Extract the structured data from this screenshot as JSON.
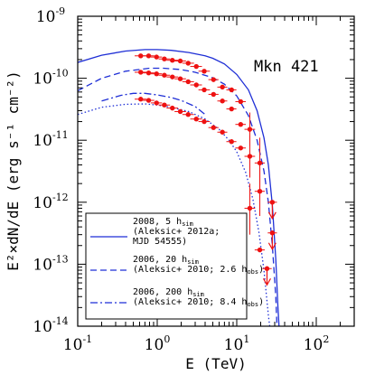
{
  "chart_data": {
    "type": "scatter",
    "annotation": "Mkn 421",
    "xlabel": "E (TeV)",
    "ylabel": "E²×dN/dE (erg s⁻¹ cm⁻²)",
    "xscale": "log",
    "yscale": "log",
    "xlim": [
      0.1,
      300
    ],
    "ylim": [
      1e-14,
      1e-09
    ],
    "x_ticks": [
      {
        "value": 0.1,
        "base": "10",
        "exp": "-1"
      },
      {
        "value": 1,
        "base": "10",
        "exp": "0"
      },
      {
        "value": 10,
        "base": "10",
        "exp": "1"
      },
      {
        "value": 100,
        "base": "10",
        "exp": "2"
      }
    ],
    "y_ticks": [
      {
        "value": 1e-09,
        "base": "10",
        "exp": "-9"
      },
      {
        "value": 1e-10,
        "base": "10",
        "exp": "-10"
      },
      {
        "value": 1e-11,
        "base": "10",
        "exp": "-11"
      },
      {
        "value": 1e-12,
        "base": "10",
        "exp": "-12"
      },
      {
        "value": 1e-13,
        "base": "10",
        "exp": "-13"
      },
      {
        "value": 1e-14,
        "base": "10",
        "exp": "-14"
      }
    ],
    "series": [
      {
        "style": "solid",
        "color": "#1f2fd6",
        "curve": [
          [
            0.1,
            1.8e-10
          ],
          [
            0.2,
            2.35e-10
          ],
          [
            0.4,
            2.75e-10
          ],
          [
            0.7,
            2.9e-10
          ],
          [
            1.0,
            2.9e-10
          ],
          [
            1.5,
            2.82e-10
          ],
          [
            2.5,
            2.6e-10
          ],
          [
            4.0,
            2.3e-10
          ],
          [
            5.0,
            2.1e-10
          ],
          [
            7.0,
            1.7e-10
          ],
          [
            10,
            1.15e-10
          ],
          [
            14,
            6.5e-11
          ],
          [
            18,
            3e-11
          ],
          [
            22,
            1.1e-11
          ],
          [
            25,
            4e-12
          ],
          [
            28,
            9e-13
          ],
          [
            31,
            1.2e-13
          ],
          [
            33,
            2e-14
          ],
          [
            34,
            1e-14
          ]
        ],
        "data": [
          {
            "x": 0.62,
            "y": 2.3e-10,
            "xerr": [
              0.52,
              0.73
            ]
          },
          {
            "x": 0.78,
            "y": 2.3e-10,
            "xerr": [
              0.66,
              0.92
            ]
          },
          {
            "x": 0.98,
            "y": 2.2e-10,
            "xerr": [
              0.83,
              1.15
            ]
          },
          {
            "x": 1.23,
            "y": 2.05e-10,
            "xerr": [
              1.04,
              1.45
            ]
          },
          {
            "x": 1.55,
            "y": 1.95e-10,
            "xerr": [
              1.31,
              1.83
            ]
          },
          {
            "x": 1.95,
            "y": 1.9e-10,
            "xerr": [
              1.65,
              2.3
            ]
          },
          {
            "x": 2.45,
            "y": 1.75e-10,
            "xerr": [
              2.07,
              2.9
            ]
          },
          {
            "x": 3.1,
            "y": 1.55e-10,
            "xerr": [
              2.6,
              3.65
            ]
          },
          {
            "x": 3.9,
            "y": 1.3e-10,
            "xerr": [
              3.3,
              4.6
            ]
          },
          {
            "x": 5.1,
            "y": 9.5e-11,
            "xerr": [
              4.4,
              5.9
            ]
          },
          {
            "x": 6.6,
            "y": 7.2e-11,
            "xerr": [
              5.7,
              7.6
            ]
          },
          {
            "x": 8.6,
            "y": 6.5e-11,
            "xerr": [
              7.4,
              9.9
            ]
          },
          {
            "x": 11.2,
            "y": 4.2e-11,
            "xerr": [
              9.6,
              13.0
            ]
          },
          {
            "x": 14.6,
            "y": 1.5e-11,
            "xerr": [
              12.5,
              17.0
            ],
            "yerr": [
              8e-12,
              2.8e-11
            ]
          },
          {
            "x": 19.5,
            "y": 4.3e-12,
            "xerr": [
              16.8,
              22.5
            ],
            "yerr": [
              1.6e-12,
              1.1e-11
            ]
          },
          {
            "x": 28,
            "y": 1e-12,
            "xerr": [
              24.5,
              32
            ],
            "upper_limit": true
          }
        ]
      },
      {
        "style": "dashed",
        "color": "#1f2fd6",
        "curve": [
          [
            0.1,
            6.3e-11
          ],
          [
            0.2,
            1e-10
          ],
          [
            0.4,
            1.3e-10
          ],
          [
            0.8,
            1.45e-10
          ],
          [
            1.2,
            1.45e-10
          ],
          [
            2.0,
            1.38e-10
          ],
          [
            3.0,
            1.25e-10
          ],
          [
            5.0,
            1.02e-10
          ],
          [
            7.0,
            8e-11
          ],
          [
            10,
            5.2e-11
          ],
          [
            14,
            2.5e-11
          ],
          [
            18,
            1e-11
          ],
          [
            22,
            3.2e-12
          ],
          [
            25,
            1e-12
          ],
          [
            28,
            2e-13
          ],
          [
            31,
            3e-14
          ],
          [
            32,
            1e-14
          ]
        ],
        "data": [
          {
            "x": 0.62,
            "y": 1.25e-10,
            "xerr": [
              0.52,
              0.73
            ]
          },
          {
            "x": 0.78,
            "y": 1.22e-10,
            "xerr": [
              0.66,
              0.92
            ]
          },
          {
            "x": 0.98,
            "y": 1.18e-10,
            "xerr": [
              0.83,
              1.15
            ]
          },
          {
            "x": 1.23,
            "y": 1.12e-10,
            "xerr": [
              1.04,
              1.45
            ]
          },
          {
            "x": 1.55,
            "y": 1.05e-10,
            "xerr": [
              1.31,
              1.83
            ]
          },
          {
            "x": 1.95,
            "y": 9.8e-11,
            "xerr": [
              1.65,
              2.3
            ]
          },
          {
            "x": 2.45,
            "y": 8.8e-11,
            "xerr": [
              2.07,
              2.9
            ]
          },
          {
            "x": 3.1,
            "y": 7.8e-11,
            "xerr": [
              2.6,
              3.65
            ]
          },
          {
            "x": 3.9,
            "y": 6.5e-11,
            "xerr": [
              3.3,
              4.6
            ]
          },
          {
            "x": 5.1,
            "y": 5.5e-11,
            "xerr": [
              4.4,
              5.9
            ]
          },
          {
            "x": 6.6,
            "y": 4.3e-11,
            "xerr": [
              5.7,
              7.6
            ]
          },
          {
            "x": 8.6,
            "y": 3.2e-11,
            "xerr": [
              7.4,
              9.9
            ]
          },
          {
            "x": 11.2,
            "y": 1.8e-11,
            "xerr": [
              9.6,
              13.0
            ]
          },
          {
            "x": 14.6,
            "y": 5.5e-12,
            "xerr": [
              12.5,
              17.0
            ],
            "yerr": [
              2.5e-12,
              1.2e-11
            ]
          },
          {
            "x": 19.5,
            "y": 1.5e-12,
            "xerr": [
              16.8,
              22.5
            ],
            "yerr": [
              6e-13,
              3.5e-12
            ]
          },
          {
            "x": 28,
            "y": 3.2e-13,
            "xerr": [
              24.5,
              32
            ],
            "upper_limit": true
          }
        ]
      },
      {
        "style": "dashdot",
        "color": "#1f2fd6",
        "curve": [
          [
            0.2,
            4.3e-11
          ],
          [
            0.35,
            5.3e-11
          ],
          [
            0.5,
            5.7e-11
          ],
          [
            0.7,
            5.7e-11
          ],
          [
            1.0,
            5.4e-11
          ],
          [
            1.5,
            4.9e-11
          ],
          [
            2.0,
            4.4e-11
          ],
          [
            3.0,
            3.5e-11
          ],
          [
            4.0,
            2.6e-11
          ]
        ],
        "data": [
          {
            "x": 0.62,
            "y": 4.6e-11,
            "xerr": [
              0.52,
              0.73
            ]
          },
          {
            "x": 0.78,
            "y": 4.4e-11,
            "xerr": [
              0.66,
              0.92
            ]
          },
          {
            "x": 0.98,
            "y": 4e-11,
            "xerr": [
              0.83,
              1.15
            ]
          },
          {
            "x": 1.23,
            "y": 3.7e-11,
            "xerr": [
              1.04,
              1.45
            ]
          },
          {
            "x": 1.55,
            "y": 3.3e-11,
            "xerr": [
              1.31,
              1.83
            ]
          },
          {
            "x": 1.95,
            "y": 2.9e-11,
            "xerr": [
              1.65,
              2.3
            ]
          },
          {
            "x": 2.45,
            "y": 2.6e-11,
            "xerr": [
              2.07,
              2.9
            ]
          },
          {
            "x": 3.1,
            "y": 2.2e-11,
            "xerr": [
              2.6,
              3.65
            ]
          },
          {
            "x": 3.9,
            "y": 2e-11,
            "xerr": [
              3.3,
              4.6
            ]
          },
          {
            "x": 5.1,
            "y": 1.6e-11,
            "xerr": [
              4.4,
              5.9
            ]
          },
          {
            "x": 6.6,
            "y": 1.35e-11,
            "xerr": [
              5.7,
              7.6
            ]
          },
          {
            "x": 8.6,
            "y": 9.5e-12,
            "xerr": [
              7.4,
              9.9
            ]
          },
          {
            "x": 11.2,
            "y": 7.5e-12,
            "xerr": [
              9.6,
              13.0
            ]
          },
          {
            "x": 14.6,
            "y": 8e-13,
            "xerr": [
              12.5,
              17.0
            ],
            "yerr": [
              3e-13,
              2e-12
            ]
          },
          {
            "x": 19.5,
            "y": 1.7e-13,
            "xerr": [
              16.8,
              22.5
            ]
          },
          {
            "x": 24,
            "y": 8.5e-14,
            "xerr": [
              21,
              27.5
            ],
            "upper_limit": true
          }
        ]
      },
      {
        "style": "dotted",
        "color": "#1f2fd6",
        "curve": [
          [
            0.1,
            2.6e-11
          ],
          [
            0.2,
            3.4e-11
          ],
          [
            0.4,
            3.8e-11
          ],
          [
            0.7,
            3.85e-11
          ],
          [
            1.0,
            3.7e-11
          ],
          [
            1.5,
            3.4e-11
          ],
          [
            2.5,
            2.9e-11
          ],
          [
            4.0,
            2.2e-11
          ],
          [
            6.0,
            1.5e-11
          ],
          [
            8.0,
            1e-11
          ],
          [
            10,
            6.5e-12
          ],
          [
            13,
            3e-12
          ],
          [
            16,
            1.1e-12
          ],
          [
            19,
            3.3e-13
          ],
          [
            22,
            8e-14
          ],
          [
            25,
            1.5e-14
          ],
          [
            26,
            1e-14
          ]
        ],
        "data": []
      }
    ],
    "legend": {
      "placement": "lower-left",
      "entries": [
        {
          "style": "solid",
          "lines": [
            {
              "parts": [
                "2008, 5 h",
                "sim"
              ]
            },
            {
              "parts": [
                "(Aleksic+ 2012a;"
              ]
            },
            {
              "parts": [
                "MJD 54555)"
              ]
            }
          ]
        },
        {
          "style": "dashed",
          "lines": [
            {
              "parts": [
                "2006, 20 h",
                "sim"
              ]
            },
            {
              "parts": [
                "(Aleksic+ 2010; 2.6 h",
                "obs",
                ")"
              ]
            }
          ]
        },
        {
          "style": "dashdot",
          "lines": [
            {
              "parts": [
                "2006, 200 h",
                "sim"
              ]
            },
            {
              "parts": [
                "(Aleksic+ 2010; 8.4 h",
                "obs",
                ")"
              ]
            }
          ]
        }
      ]
    },
    "marker_color": "#ee1111",
    "curve_color": "#1f2fd6"
  }
}
